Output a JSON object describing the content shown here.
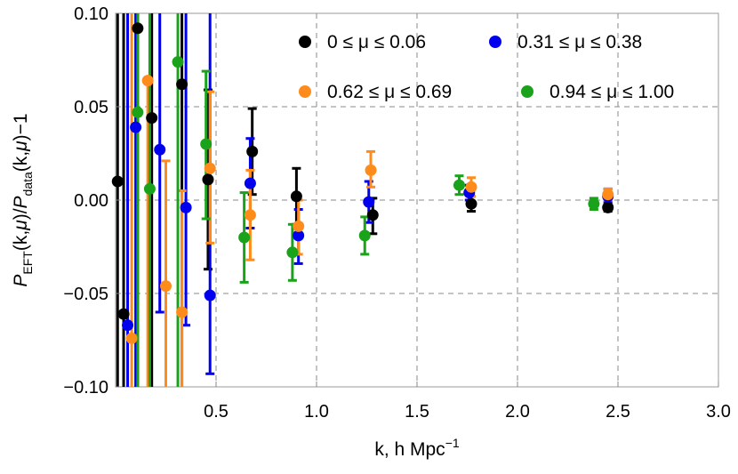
{
  "chart_data": {
    "type": "scatter",
    "title": "",
    "xlabel": "k, h Mpc",
    "xlabel_superscript": "−1",
    "ylabel_parts": {
      "p1": "P",
      "sub1": "EFT",
      "mid": "(k,",
      "mu1": "μ",
      "close1": ")/",
      "p2": "P",
      "sub2": "data",
      "mid2": "(k,",
      "mu2": "μ",
      "tail": ")−1"
    },
    "xlim": [
      0.0,
      3.0
    ],
    "ylim": [
      -0.1,
      0.1
    ],
    "xticks": [
      0.5,
      1.0,
      1.5,
      2.0,
      2.5,
      3.0
    ],
    "xtick_labels": [
      "0.5",
      "1.0",
      "1.5",
      "2.0",
      "2.5",
      "3.0"
    ],
    "yticks": [
      -0.1,
      -0.05,
      0.0,
      0.05,
      0.1
    ],
    "ytick_labels": [
      "−0.10",
      "−0.05",
      "0.00",
      "0.05",
      "0.10"
    ],
    "grid": "dashed at major ticks",
    "legend_placement": "top-right, inside plot",
    "series": [
      {
        "name": "0 ≤ μ ≤ 0.06",
        "color": "#000000",
        "points": [
          {
            "x": 0.01,
            "y": 0.01,
            "lo": -0.2,
            "hi": 0.2
          },
          {
            "x": 0.04,
            "y": -0.061,
            "lo": -0.2,
            "hi": 0.2
          },
          {
            "x": 0.11,
            "y": 0.092,
            "lo": -0.2,
            "hi": 0.2
          },
          {
            "x": 0.18,
            "y": 0.044,
            "lo": -0.2,
            "hi": 0.2
          },
          {
            "x": 0.33,
            "y": 0.062,
            "lo": -0.2,
            "hi": 0.2
          },
          {
            "x": 0.46,
            "y": 0.011,
            "lo": -0.037,
            "hi": 0.059
          },
          {
            "x": 0.68,
            "y": 0.026,
            "lo": 0.003,
            "hi": 0.049
          },
          {
            "x": 0.9,
            "y": 0.002,
            "lo": -0.013,
            "hi": 0.017
          },
          {
            "x": 1.28,
            "y": -0.008,
            "lo": -0.018,
            "hi": 0.001
          },
          {
            "x": 1.77,
            "y": -0.002,
            "lo": -0.006,
            "hi": 0.002
          },
          {
            "x": 2.45,
            "y": -0.004,
            "lo": -0.006,
            "hi": -0.002
          }
        ]
      },
      {
        "name": "0.31 ≤ μ ≤ 0.38",
        "color": "#0000ee",
        "points": [
          {
            "x": 0.06,
            "y": -0.067,
            "lo": -0.2,
            "hi": 0.2
          },
          {
            "x": 0.1,
            "y": 0.039,
            "lo": -0.2,
            "hi": 0.2
          },
          {
            "x": 0.22,
            "y": 0.027,
            "lo": -0.06,
            "hi": 0.2
          },
          {
            "x": 0.35,
            "y": -0.004,
            "lo": -0.067,
            "hi": 0.2
          },
          {
            "x": 0.47,
            "y": -0.051,
            "lo": -0.093,
            "hi": 0.2
          },
          {
            "x": 0.67,
            "y": 0.009,
            "lo": -0.015,
            "hi": 0.033
          },
          {
            "x": 0.91,
            "y": -0.019,
            "lo": -0.034,
            "hi": -0.005
          },
          {
            "x": 1.26,
            "y": -0.001,
            "lo": -0.012,
            "hi": 0.01
          },
          {
            "x": 1.76,
            "y": 0.004,
            "lo": 0.0,
            "hi": 0.008
          },
          {
            "x": 2.45,
            "y": 0.002,
            "lo": -0.001,
            "hi": 0.006
          }
        ]
      },
      {
        "name": "0.62 ≤ μ ≤ 0.69",
        "color": "#ff8c1a",
        "points": [
          {
            "x": 0.08,
            "y": -0.074,
            "lo": -0.2,
            "hi": 0.2
          },
          {
            "x": 0.16,
            "y": 0.064,
            "lo": -0.2,
            "hi": 0.064
          },
          {
            "x": 0.25,
            "y": -0.046,
            "lo": -0.2,
            "hi": 0.021
          },
          {
            "x": 0.33,
            "y": -0.06,
            "lo": -0.2,
            "hi": 0.005
          },
          {
            "x": 0.47,
            "y": 0.017,
            "lo": -0.023,
            "hi": 0.058
          },
          {
            "x": 0.67,
            "y": -0.008,
            "lo": -0.032,
            "hi": 0.016
          },
          {
            "x": 0.91,
            "y": -0.014,
            "lo": -0.029,
            "hi": 0.0
          },
          {
            "x": 1.27,
            "y": 0.016,
            "lo": 0.007,
            "hi": 0.026
          },
          {
            "x": 1.77,
            "y": 0.007,
            "lo": 0.002,
            "hi": 0.012
          },
          {
            "x": 2.45,
            "y": 0.003,
            "lo": 0.0,
            "hi": 0.006
          }
        ]
      },
      {
        "name": "0.94 ≤ μ ≤ 1.00",
        "color": "#1aa31a",
        "points": [
          {
            "x": 0.11,
            "y": 0.047,
            "lo": -0.2,
            "hi": 0.2
          },
          {
            "x": 0.17,
            "y": 0.006,
            "lo": -0.2,
            "hi": 0.2
          },
          {
            "x": 0.31,
            "y": 0.074,
            "lo": -0.2,
            "hi": 0.2
          },
          {
            "x": 0.45,
            "y": 0.03,
            "lo": -0.01,
            "hi": 0.069
          },
          {
            "x": 0.64,
            "y": -0.02,
            "lo": -0.044,
            "hi": 0.004
          },
          {
            "x": 0.88,
            "y": -0.028,
            "lo": -0.043,
            "hi": -0.013
          },
          {
            "x": 1.24,
            "y": -0.019,
            "lo": -0.029,
            "hi": -0.009
          },
          {
            "x": 1.71,
            "y": 0.008,
            "lo": 0.003,
            "hi": 0.013
          },
          {
            "x": 2.38,
            "y": -0.002,
            "lo": -0.005,
            "hi": 0.001
          }
        ]
      }
    ]
  }
}
